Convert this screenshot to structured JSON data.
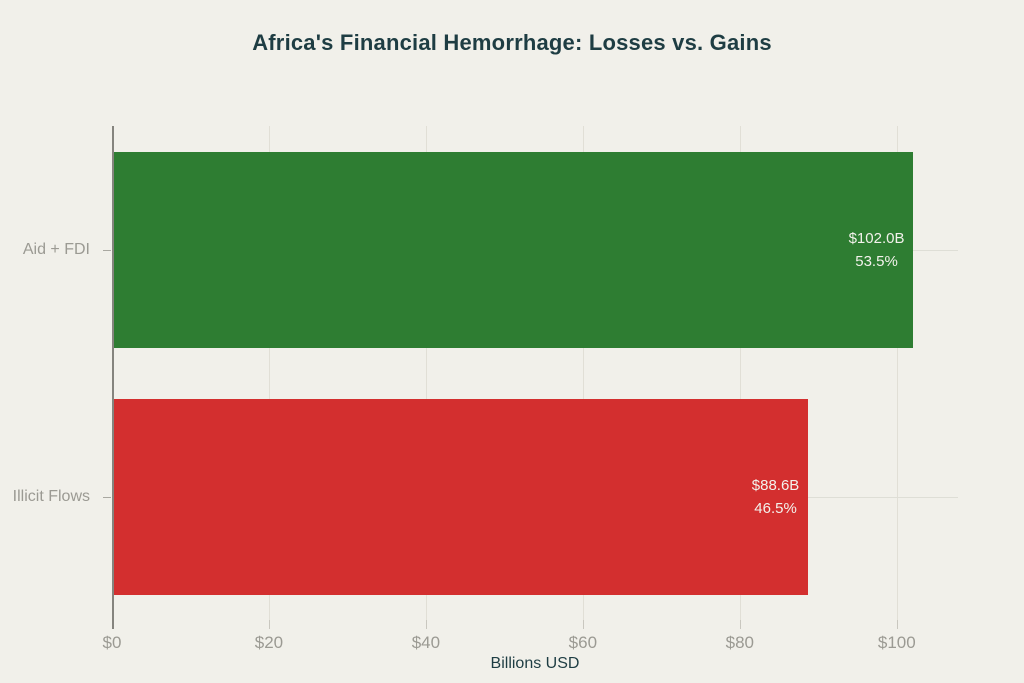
{
  "chart_data": {
    "type": "bar",
    "orientation": "horizontal",
    "title": "Africa's Financial Hemorrhage: Losses vs. Gains",
    "xlabel": "Billions USD",
    "categories": [
      "Aid + FDI",
      "Illicit Flows"
    ],
    "values": [
      102.0,
      88.6
    ],
    "bars": [
      {
        "category": "Aid + FDI",
        "value": 102.0,
        "value_label": "$102.0B",
        "percent_label": "53.5%",
        "color": "#2e7d32"
      },
      {
        "category": "Illicit Flows",
        "value": 88.6,
        "value_label": "$88.6B",
        "percent_label": "46.5%",
        "color": "#d32f2f"
      }
    ],
    "x_ticks": [
      {
        "value": 0,
        "label": "$0"
      },
      {
        "value": 20,
        "label": "$20"
      },
      {
        "value": 40,
        "label": "$40"
      },
      {
        "value": 60,
        "label": "$60"
      },
      {
        "value": 80,
        "label": "$80"
      },
      {
        "value": 100,
        "label": "$100"
      }
    ],
    "xlim": [
      0,
      107.8
    ],
    "grid": true,
    "legend_position": "none",
    "colors": {
      "background": "#f1f0ea",
      "title_text": "#1e3d43",
      "tick_text": "#9b9a93",
      "bar_label_text": "#f3f2ec",
      "gridline": "#e1dfd6",
      "axis_line": "#85847e",
      "gain_bar": "#2e7d32",
      "loss_bar": "#d32f2f"
    }
  }
}
